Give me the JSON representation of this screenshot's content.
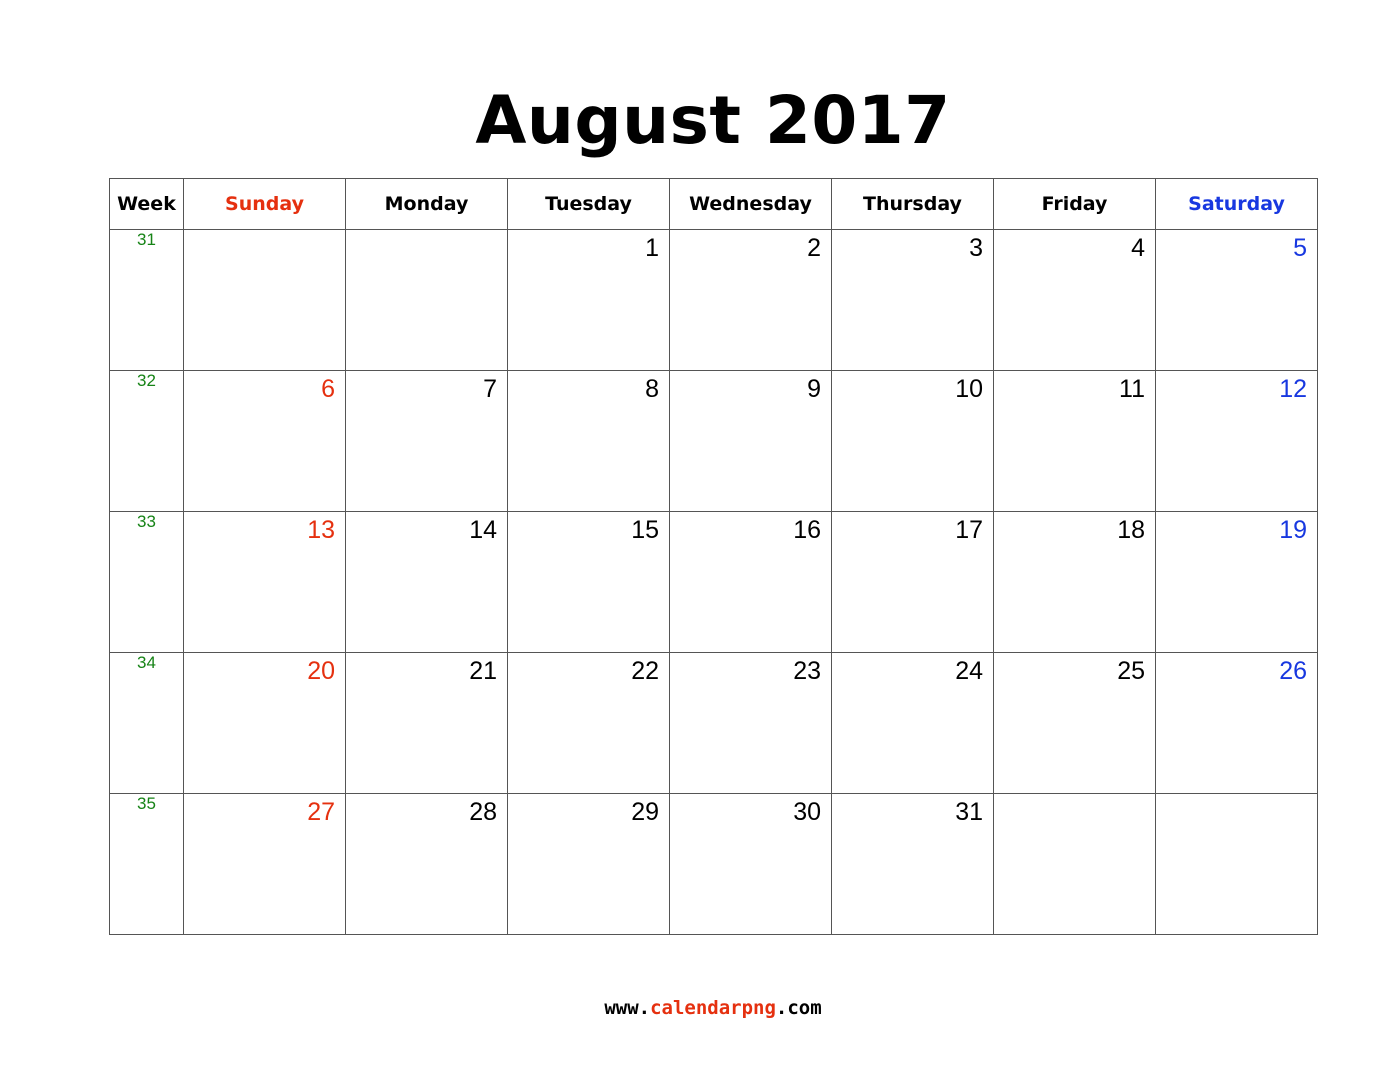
{
  "title": "August 2017",
  "columns": {
    "week": "Week",
    "days": [
      "Sunday",
      "Monday",
      "Tuesday",
      "Wednesday",
      "Thursday",
      "Friday",
      "Saturday"
    ]
  },
  "weeks": [
    {
      "number": "31",
      "days": [
        "",
        "",
        "1",
        "2",
        "3",
        "4",
        "5"
      ]
    },
    {
      "number": "32",
      "days": [
        "6",
        "7",
        "8",
        "9",
        "10",
        "11",
        "12"
      ]
    },
    {
      "number": "33",
      "days": [
        "13",
        "14",
        "15",
        "16",
        "17",
        "18",
        "19"
      ]
    },
    {
      "number": "34",
      "days": [
        "20",
        "21",
        "22",
        "23",
        "24",
        "25",
        "26"
      ]
    },
    {
      "number": "35",
      "days": [
        "27",
        "28",
        "29",
        "30",
        "31",
        "",
        ""
      ]
    }
  ],
  "footer": {
    "prefix": "www.",
    "brand": "calendarpng",
    "suffix": ".com"
  },
  "colors": {
    "sunday": "#e5300f",
    "saturday": "#1838e0",
    "week_number": "#168316",
    "brand": "#e5300f"
  }
}
